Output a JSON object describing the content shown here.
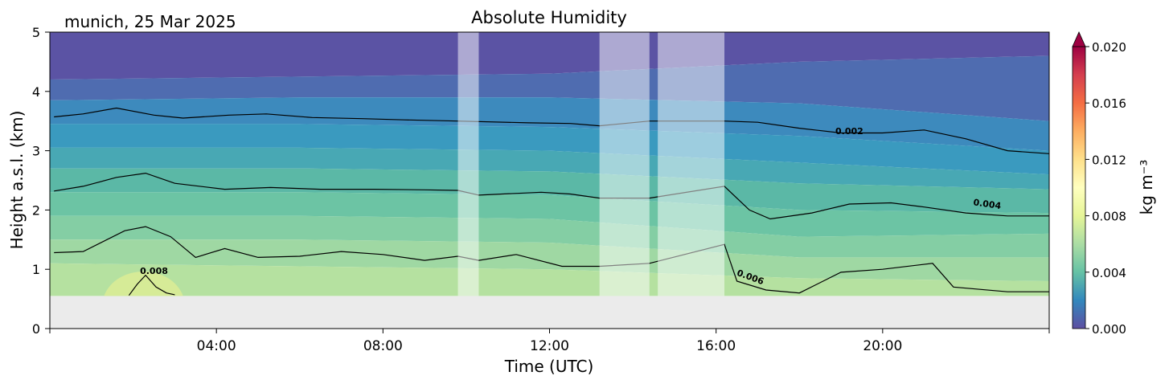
{
  "chart_data": {
    "type": "heatmap",
    "title": "Absolute Humidity",
    "subtitle": "munich, 25 Mar 2025",
    "xlabel": "Time (UTC)",
    "ylabel": "Height a.s.l. (km)",
    "xlim": [
      0,
      24
    ],
    "ylim": [
      0,
      5
    ],
    "x_ticks": [
      {
        "value": 4,
        "label": "04:00"
      },
      {
        "value": 8,
        "label": "08:00"
      },
      {
        "value": 12,
        "label": "12:00"
      },
      {
        "value": 16,
        "label": "16:00"
      },
      {
        "value": 20,
        "label": "20:00"
      }
    ],
    "y_ticks": [
      {
        "value": 0,
        "label": "0"
      },
      {
        "value": 1,
        "label": "1"
      },
      {
        "value": 2,
        "label": "2"
      },
      {
        "value": 3,
        "label": "3"
      },
      {
        "value": 4,
        "label": "4"
      },
      {
        "value": 5,
        "label": "5"
      }
    ],
    "data_bottom_km": 0.55,
    "colorbar": {
      "label": "kg m⁻³",
      "min": 0.0,
      "max": 0.02,
      "extend": "max",
      "ticks": [
        {
          "value": 0.0,
          "label": "0.000"
        },
        {
          "value": 0.004,
          "label": "0.004"
        },
        {
          "value": 0.008,
          "label": "0.008"
        },
        {
          "value": 0.012,
          "label": "0.012"
        },
        {
          "value": 0.016,
          "label": "0.016"
        },
        {
          "value": 0.02,
          "label": "0.020"
        }
      ],
      "colors": [
        "#5e4fa2",
        "#3288bd",
        "#66c2a5",
        "#abdda4",
        "#e6f598",
        "#ffffbf",
        "#fee08b",
        "#fdae61",
        "#f46d43",
        "#d53e4f",
        "#9e0142"
      ]
    },
    "masked_periods_utc": [
      {
        "start": 9.8,
        "end": 10.3
      },
      {
        "start": 13.2,
        "end": 14.4
      },
      {
        "start": 14.6,
        "end": 16.2
      }
    ],
    "contours": [
      {
        "level": 0.002,
        "label": "0.002",
        "points": [
          [
            0.1,
            3.57
          ],
          [
            0.8,
            3.62
          ],
          [
            1.6,
            3.72
          ],
          [
            2.5,
            3.6
          ],
          [
            3.2,
            3.55
          ],
          [
            4.3,
            3.6
          ],
          [
            5.2,
            3.62
          ],
          [
            6.3,
            3.56
          ],
          [
            7.5,
            3.54
          ],
          [
            8.5,
            3.52
          ],
          [
            9.8,
            3.5
          ],
          [
            11.5,
            3.47
          ],
          [
            12.5,
            3.46
          ],
          [
            13.2,
            3.42
          ],
          [
            14.4,
            3.5
          ],
          [
            16.2,
            3.5
          ],
          [
            17.0,
            3.48
          ],
          [
            18.0,
            3.38
          ],
          [
            19.0,
            3.3
          ],
          [
            20.0,
            3.3
          ],
          [
            21.0,
            3.35
          ],
          [
            22.0,
            3.2
          ],
          [
            23.0,
            3.0
          ],
          [
            24.0,
            2.95
          ]
        ]
      },
      {
        "level": 0.004,
        "label": "0.004",
        "points": [
          [
            0.1,
            2.32
          ],
          [
            0.8,
            2.4
          ],
          [
            1.6,
            2.55
          ],
          [
            2.3,
            2.62
          ],
          [
            3.0,
            2.45
          ],
          [
            4.2,
            2.35
          ],
          [
            5.3,
            2.38
          ],
          [
            6.5,
            2.35
          ],
          [
            7.8,
            2.35
          ],
          [
            9.0,
            2.34
          ],
          [
            9.8,
            2.33
          ],
          [
            10.3,
            2.25
          ],
          [
            11.8,
            2.3
          ],
          [
            12.5,
            2.27
          ],
          [
            13.2,
            2.2
          ],
          [
            14.4,
            2.2
          ],
          [
            16.2,
            2.4
          ],
          [
            16.8,
            2.0
          ],
          [
            17.3,
            1.85
          ],
          [
            18.3,
            1.95
          ],
          [
            19.2,
            2.1
          ],
          [
            20.2,
            2.12
          ],
          [
            21.0,
            2.05
          ],
          [
            22.0,
            1.95
          ],
          [
            23.0,
            1.9
          ],
          [
            24.0,
            1.9
          ]
        ]
      },
      {
        "level": 0.006,
        "label": "0.006",
        "points": [
          [
            0.1,
            1.28
          ],
          [
            0.8,
            1.3
          ],
          [
            1.8,
            1.65
          ],
          [
            2.3,
            1.72
          ],
          [
            2.9,
            1.55
          ],
          [
            3.5,
            1.2
          ],
          [
            4.2,
            1.35
          ],
          [
            5.0,
            1.2
          ],
          [
            6.0,
            1.22
          ],
          [
            7.0,
            1.3
          ],
          [
            8.0,
            1.25
          ],
          [
            9.0,
            1.15
          ],
          [
            9.8,
            1.22
          ],
          [
            10.3,
            1.15
          ],
          [
            11.2,
            1.25
          ],
          [
            12.3,
            1.05
          ],
          [
            13.2,
            1.05
          ],
          [
            14.4,
            1.1
          ],
          [
            16.2,
            1.42
          ],
          [
            16.5,
            0.8
          ],
          [
            17.2,
            0.65
          ],
          [
            18.0,
            0.6
          ],
          [
            19.0,
            0.95
          ],
          [
            20.0,
            1.0
          ],
          [
            21.2,
            1.1
          ],
          [
            21.7,
            0.7
          ],
          [
            23.0,
            0.62
          ],
          [
            24.0,
            0.62
          ]
        ]
      },
      {
        "level": 0.008,
        "label": "0.008",
        "points": [
          [
            1.9,
            0.56
          ],
          [
            2.1,
            0.75
          ],
          [
            2.3,
            0.9
          ],
          [
            2.55,
            0.7
          ],
          [
            2.8,
            0.6
          ],
          [
            3.0,
            0.57
          ]
        ]
      }
    ],
    "grid": false,
    "legend": "none"
  }
}
